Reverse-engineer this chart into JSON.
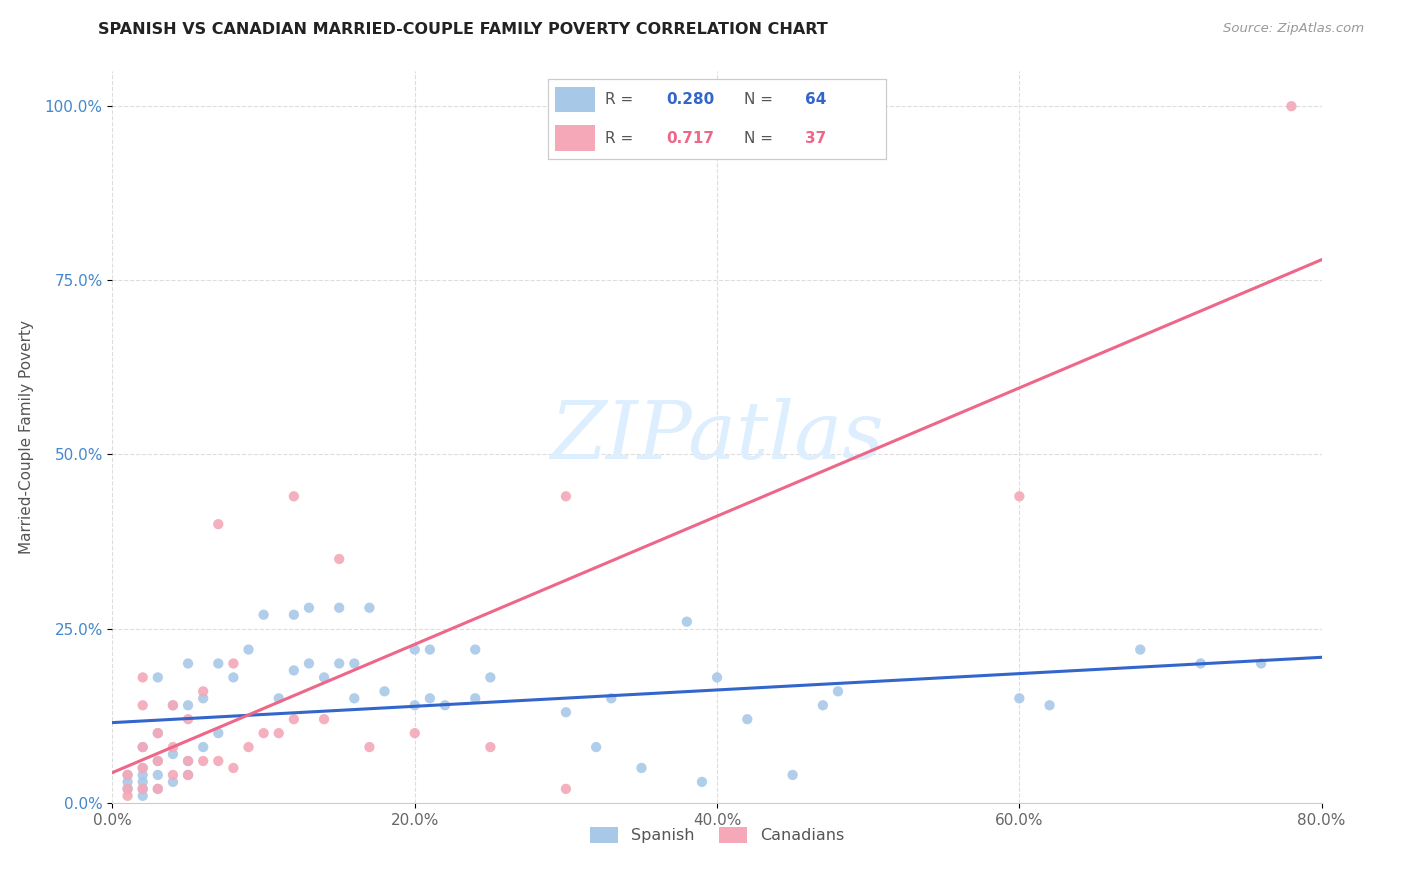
{
  "title": "SPANISH VS CANADIAN MARRIED-COUPLE FAMILY POVERTY CORRELATION CHART",
  "source": "Source: ZipAtlas.com",
  "ylabel": "Married-Couple Family Poverty",
  "xlim": [
    0.0,
    0.8
  ],
  "ylim": [
    0.0,
    1.05
  ],
  "xtick_labels": [
    "0.0%",
    "20.0%",
    "40.0%",
    "60.0%",
    "80.0%"
  ],
  "xtick_values": [
    0.0,
    0.2,
    0.4,
    0.6,
    0.8
  ],
  "ytick_labels": [
    "0.0%",
    "25.0%",
    "50.0%",
    "75.0%",
    "100.0%"
  ],
  "ytick_values": [
    0.0,
    0.25,
    0.5,
    0.75,
    1.0
  ],
  "spanish_R": "0.280",
  "spanish_N": "64",
  "canadian_R": "0.717",
  "canadian_N": "37",
  "spanish_color": "#a8c8e8",
  "canadian_color": "#f4a8b8",
  "spanish_line_color": "#3366cc",
  "canadian_line_color": "#ee6688",
  "watermark_zip": "ZIP",
  "watermark_atlas": "atlas",
  "watermark_color": "#ddeeff",
  "spanish_x": [
    0.01,
    0.01,
    0.01,
    0.02,
    0.02,
    0.02,
    0.02,
    0.02,
    0.02,
    0.03,
    0.03,
    0.03,
    0.03,
    0.03,
    0.04,
    0.04,
    0.04,
    0.05,
    0.05,
    0.05,
    0.05,
    0.06,
    0.06,
    0.07,
    0.07,
    0.08,
    0.09,
    0.1,
    0.11,
    0.12,
    0.12,
    0.13,
    0.13,
    0.14,
    0.15,
    0.15,
    0.16,
    0.16,
    0.17,
    0.18,
    0.2,
    0.2,
    0.21,
    0.21,
    0.22,
    0.24,
    0.24,
    0.25,
    0.3,
    0.32,
    0.33,
    0.35,
    0.38,
    0.39,
    0.4,
    0.42,
    0.45,
    0.47,
    0.48,
    0.6,
    0.62,
    0.68,
    0.72,
    0.76
  ],
  "spanish_y": [
    0.02,
    0.03,
    0.04,
    0.01,
    0.02,
    0.03,
    0.04,
    0.05,
    0.08,
    0.02,
    0.04,
    0.06,
    0.1,
    0.18,
    0.03,
    0.07,
    0.14,
    0.04,
    0.06,
    0.14,
    0.2,
    0.08,
    0.15,
    0.1,
    0.2,
    0.18,
    0.22,
    0.27,
    0.15,
    0.19,
    0.27,
    0.2,
    0.28,
    0.18,
    0.2,
    0.28,
    0.15,
    0.2,
    0.28,
    0.16,
    0.14,
    0.22,
    0.15,
    0.22,
    0.14,
    0.15,
    0.22,
    0.18,
    0.13,
    0.08,
    0.15,
    0.05,
    0.26,
    0.03,
    0.18,
    0.12,
    0.04,
    0.14,
    0.16,
    0.15,
    0.14,
    0.22,
    0.2,
    0.2
  ],
  "canadian_x": [
    0.01,
    0.01,
    0.01,
    0.02,
    0.02,
    0.02,
    0.02,
    0.02,
    0.03,
    0.03,
    0.03,
    0.04,
    0.04,
    0.04,
    0.05,
    0.05,
    0.05,
    0.06,
    0.06,
    0.07,
    0.07,
    0.08,
    0.08,
    0.09,
    0.1,
    0.11,
    0.12,
    0.12,
    0.14,
    0.15,
    0.17,
    0.2,
    0.25,
    0.3,
    0.3,
    0.6,
    0.78
  ],
  "canadian_y": [
    0.01,
    0.02,
    0.04,
    0.02,
    0.05,
    0.08,
    0.14,
    0.18,
    0.02,
    0.06,
    0.1,
    0.04,
    0.08,
    0.14,
    0.04,
    0.06,
    0.12,
    0.06,
    0.16,
    0.06,
    0.4,
    0.05,
    0.2,
    0.08,
    0.1,
    0.1,
    0.12,
    0.44,
    0.12,
    0.35,
    0.08,
    0.1,
    0.08,
    0.02,
    0.44,
    0.44,
    1.0
  ]
}
